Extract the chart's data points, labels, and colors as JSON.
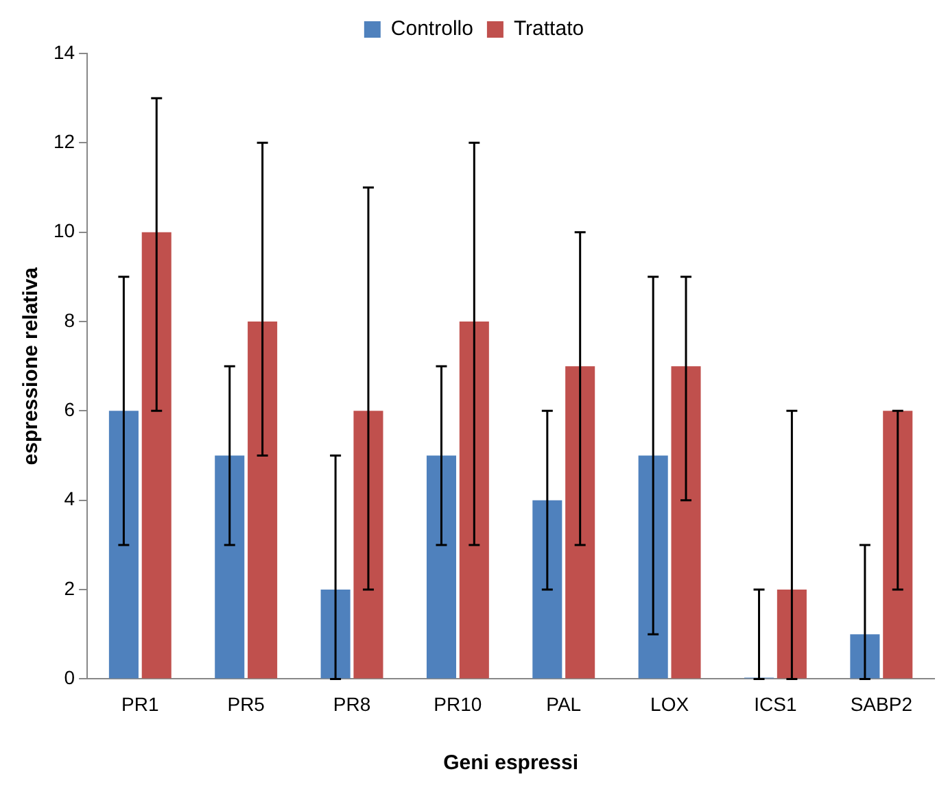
{
  "chart_data": {
    "type": "bar",
    "xlabel": "Geni espressi",
    "ylabel": "espressione relativa",
    "categories": [
      "PR1",
      "PR5",
      "PR8",
      "PR10",
      "PAL",
      "LOX",
      "ICS1",
      "SABP2"
    ],
    "series": [
      {
        "name": "Controllo",
        "color": "#4f81bd",
        "values": [
          6,
          5,
          2,
          5,
          4,
          5,
          0,
          1
        ],
        "errors": [
          [
            3,
            9
          ],
          [
            3,
            7
          ],
          [
            0,
            5
          ],
          [
            3,
            7
          ],
          [
            2,
            6
          ],
          [
            1,
            9
          ],
          [
            0,
            2
          ],
          [
            0,
            3
          ]
        ]
      },
      {
        "name": "Trattato",
        "color": "#c0504d",
        "values": [
          10,
          8,
          6,
          8,
          7,
          7,
          2,
          6
        ],
        "errors": [
          [
            6,
            13
          ],
          [
            5,
            12
          ],
          [
            2,
            11
          ],
          [
            3,
            12
          ],
          [
            3,
            10
          ],
          [
            4,
            9
          ],
          [
            0,
            6
          ],
          [
            2,
            6
          ]
        ]
      }
    ],
    "ylim": [
      0,
      14
    ],
    "yticks": [
      0,
      2,
      4,
      6,
      8,
      10,
      12,
      14
    ],
    "grid": false,
    "legend": "top"
  }
}
